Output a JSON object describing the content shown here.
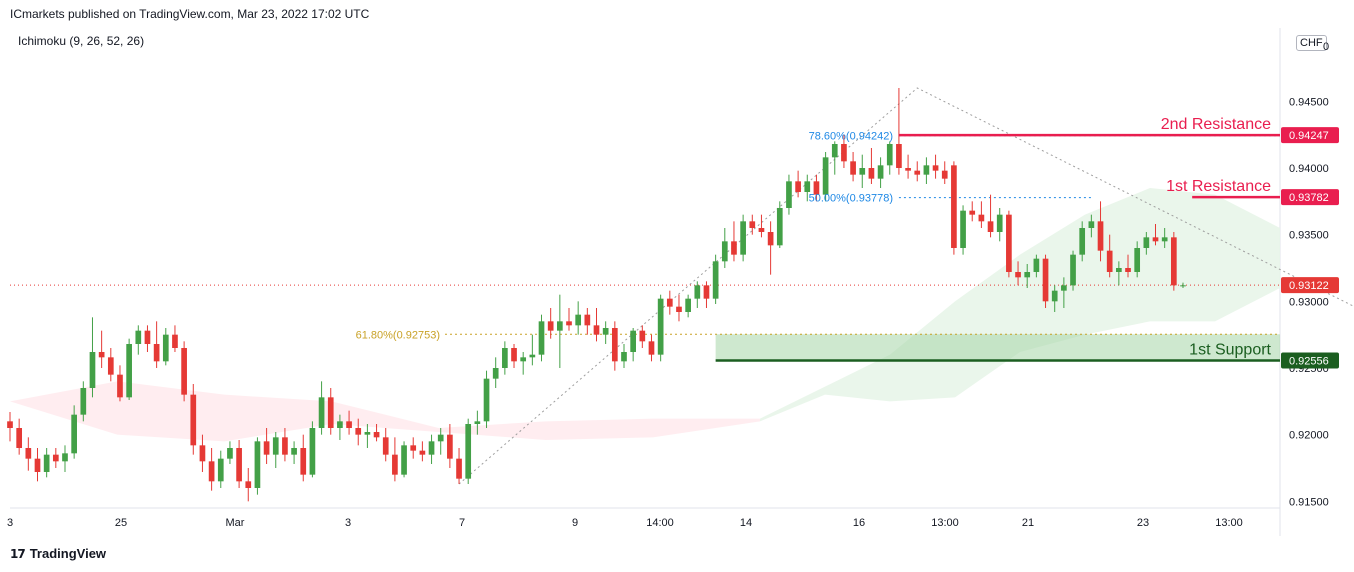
{
  "header": {
    "publisher_line": "ICmarkets published on TradingView.com, Mar 23, 2022 17:02 UTC",
    "indicator": "Ichimoku (9, 26, 52, 26)",
    "currency": "CHF"
  },
  "footer": {
    "logo_glyph": "17",
    "brand": "TradingView"
  },
  "colors": {
    "bull": "#43a047",
    "bear": "#e53935",
    "resistance": "#e91e4f",
    "support": "#1b5e20",
    "support_zone": "#a5d6a7",
    "fib": "#1e88e5",
    "fib_618": "#c9a227",
    "current": "#e53935",
    "cloud_green": "#e8f5e9",
    "cloud_red": "#ffebee"
  },
  "chart_data": {
    "type": "candlestick",
    "ylim": [
      0.9145,
      0.9505
    ],
    "y_ticks": [
      "0.91500",
      "0.92000",
      "0.92500",
      "0.93000",
      "0.93500",
      "0.94000",
      "0.94500",
      "0"
    ],
    "x_ticks": [
      "3",
      "25",
      "Mar",
      "3",
      "7",
      "9",
      "14:00",
      "14",
      "16",
      "13:00",
      "21",
      "23",
      "13:00"
    ],
    "levels": [
      {
        "name": "2nd Resistance",
        "value": 0.94247,
        "label": "0.94247",
        "kind": "resistance"
      },
      {
        "name": "1st Resistance",
        "value": 0.93782,
        "label": "0.93782",
        "kind": "resistance"
      },
      {
        "name": "1st Support",
        "value": 0.92556,
        "label": "0.92556",
        "kind": "support"
      }
    ],
    "current_price": {
      "value": 0.93122,
      "label": "0.93122"
    },
    "fib_labels": [
      {
        "text": "78.60%(0.94242)",
        "value": 0.94242,
        "kind": "fib"
      },
      {
        "text": "50.00%(0.93778)",
        "value": 0.93778,
        "kind": "fib"
      },
      {
        "text": "61.80%(0.92753)",
        "value": 0.92753,
        "kind": "fib_618"
      }
    ],
    "candles": [
      {
        "o": 0.921,
        "h": 0.9217,
        "l": 0.9195,
        "c": 0.9205
      },
      {
        "o": 0.9205,
        "h": 0.9212,
        "l": 0.9185,
        "c": 0.919
      },
      {
        "o": 0.919,
        "h": 0.9198,
        "l": 0.9173,
        "c": 0.9182
      },
      {
        "o": 0.9182,
        "h": 0.919,
        "l": 0.9165,
        "c": 0.9172
      },
      {
        "o": 0.9172,
        "h": 0.919,
        "l": 0.9168,
        "c": 0.9185
      },
      {
        "o": 0.9185,
        "h": 0.919,
        "l": 0.9175,
        "c": 0.918
      },
      {
        "o": 0.918,
        "h": 0.9192,
        "l": 0.9172,
        "c": 0.9186
      },
      {
        "o": 0.9186,
        "h": 0.9222,
        "l": 0.9182,
        "c": 0.9215
      },
      {
        "o": 0.9215,
        "h": 0.924,
        "l": 0.921,
        "c": 0.9235
      },
      {
        "o": 0.9235,
        "h": 0.9288,
        "l": 0.9228,
        "c": 0.9262
      },
      {
        "o": 0.9262,
        "h": 0.9278,
        "l": 0.925,
        "c": 0.9258
      },
      {
        "o": 0.9258,
        "h": 0.9265,
        "l": 0.924,
        "c": 0.9245
      },
      {
        "o": 0.9245,
        "h": 0.9252,
        "l": 0.9225,
        "c": 0.9228
      },
      {
        "o": 0.9228,
        "h": 0.9272,
        "l": 0.9226,
        "c": 0.9268
      },
      {
        "o": 0.9268,
        "h": 0.9282,
        "l": 0.926,
        "c": 0.9278
      },
      {
        "o": 0.9278,
        "h": 0.9282,
        "l": 0.9262,
        "c": 0.9268
      },
      {
        "o": 0.9268,
        "h": 0.9285,
        "l": 0.925,
        "c": 0.9255
      },
      {
        "o": 0.9255,
        "h": 0.928,
        "l": 0.9252,
        "c": 0.9275
      },
      {
        "o": 0.9275,
        "h": 0.9282,
        "l": 0.9262,
        "c": 0.9265
      },
      {
        "o": 0.9265,
        "h": 0.927,
        "l": 0.9225,
        "c": 0.923
      },
      {
        "o": 0.923,
        "h": 0.9238,
        "l": 0.9185,
        "c": 0.9192
      },
      {
        "o": 0.9192,
        "h": 0.92,
        "l": 0.9172,
        "c": 0.918
      },
      {
        "o": 0.918,
        "h": 0.919,
        "l": 0.9158,
        "c": 0.9165
      },
      {
        "o": 0.9165,
        "h": 0.9188,
        "l": 0.916,
        "c": 0.9182
      },
      {
        "o": 0.9182,
        "h": 0.9195,
        "l": 0.9178,
        "c": 0.919
      },
      {
        "o": 0.919,
        "h": 0.9196,
        "l": 0.916,
        "c": 0.9165
      },
      {
        "o": 0.9165,
        "h": 0.9175,
        "l": 0.915,
        "c": 0.916
      },
      {
        "o": 0.916,
        "h": 0.9198,
        "l": 0.9155,
        "c": 0.9195
      },
      {
        "o": 0.9195,
        "h": 0.9205,
        "l": 0.9178,
        "c": 0.9185
      },
      {
        "o": 0.9185,
        "h": 0.9202,
        "l": 0.9175,
        "c": 0.9198
      },
      {
        "o": 0.9198,
        "h": 0.9205,
        "l": 0.918,
        "c": 0.9185
      },
      {
        "o": 0.9185,
        "h": 0.9195,
        "l": 0.9178,
        "c": 0.919
      },
      {
        "o": 0.919,
        "h": 0.92,
        "l": 0.9165,
        "c": 0.917
      },
      {
        "o": 0.917,
        "h": 0.921,
        "l": 0.9168,
        "c": 0.9205
      },
      {
        "o": 0.9205,
        "h": 0.924,
        "l": 0.92,
        "c": 0.9228
      },
      {
        "o": 0.9228,
        "h": 0.9235,
        "l": 0.92,
        "c": 0.9205
      },
      {
        "o": 0.9205,
        "h": 0.9215,
        "l": 0.9196,
        "c": 0.921
      },
      {
        "o": 0.921,
        "h": 0.9218,
        "l": 0.92,
        "c": 0.9205
      },
      {
        "o": 0.9205,
        "h": 0.9212,
        "l": 0.9192,
        "c": 0.92
      },
      {
        "o": 0.92,
        "h": 0.9208,
        "l": 0.919,
        "c": 0.9202
      },
      {
        "o": 0.9202,
        "h": 0.9208,
        "l": 0.9195,
        "c": 0.9198
      },
      {
        "o": 0.9198,
        "h": 0.9205,
        "l": 0.918,
        "c": 0.9185
      },
      {
        "o": 0.9185,
        "h": 0.9198,
        "l": 0.9165,
        "c": 0.917
      },
      {
        "o": 0.917,
        "h": 0.9195,
        "l": 0.9168,
        "c": 0.9192
      },
      {
        "o": 0.9192,
        "h": 0.9198,
        "l": 0.9182,
        "c": 0.9188
      },
      {
        "o": 0.9188,
        "h": 0.9195,
        "l": 0.918,
        "c": 0.9185
      },
      {
        "o": 0.9185,
        "h": 0.92,
        "l": 0.9178,
        "c": 0.9195
      },
      {
        "o": 0.9195,
        "h": 0.9205,
        "l": 0.9185,
        "c": 0.92
      },
      {
        "o": 0.92,
        "h": 0.9208,
        "l": 0.9175,
        "c": 0.9182
      },
      {
        "o": 0.9182,
        "h": 0.919,
        "l": 0.9163,
        "c": 0.9167
      },
      {
        "o": 0.9167,
        "h": 0.9212,
        "l": 0.9163,
        "c": 0.9208
      },
      {
        "o": 0.9208,
        "h": 0.9218,
        "l": 0.92,
        "c": 0.921
      },
      {
        "o": 0.921,
        "h": 0.9248,
        "l": 0.9205,
        "c": 0.9242
      },
      {
        "o": 0.9242,
        "h": 0.9258,
        "l": 0.9235,
        "c": 0.925
      },
      {
        "o": 0.925,
        "h": 0.927,
        "l": 0.9245,
        "c": 0.9265
      },
      {
        "o": 0.9265,
        "h": 0.9268,
        "l": 0.925,
        "c": 0.9255
      },
      {
        "o": 0.9255,
        "h": 0.9262,
        "l": 0.9245,
        "c": 0.9258
      },
      {
        "o": 0.9258,
        "h": 0.9275,
        "l": 0.9252,
        "c": 0.926
      },
      {
        "o": 0.926,
        "h": 0.929,
        "l": 0.9255,
        "c": 0.9285
      },
      {
        "o": 0.9285,
        "h": 0.9295,
        "l": 0.9272,
        "c": 0.9278
      },
      {
        "o": 0.9278,
        "h": 0.9305,
        "l": 0.925,
        "c": 0.9285
      },
      {
        "o": 0.9285,
        "h": 0.9295,
        "l": 0.9278,
        "c": 0.9282
      },
      {
        "o": 0.9282,
        "h": 0.93,
        "l": 0.9275,
        "c": 0.929
      },
      {
        "o": 0.929,
        "h": 0.9295,
        "l": 0.9275,
        "c": 0.9282
      },
      {
        "o": 0.9282,
        "h": 0.9295,
        "l": 0.927,
        "c": 0.9275
      },
      {
        "o": 0.9275,
        "h": 0.9285,
        "l": 0.9268,
        "c": 0.928
      },
      {
        "o": 0.928,
        "h": 0.9285,
        "l": 0.9248,
        "c": 0.9255
      },
      {
        "o": 0.9255,
        "h": 0.9268,
        "l": 0.925,
        "c": 0.9262
      },
      {
        "o": 0.9262,
        "h": 0.928,
        "l": 0.9255,
        "c": 0.9278
      },
      {
        "o": 0.9278,
        "h": 0.9282,
        "l": 0.9265,
        "c": 0.927
      },
      {
        "o": 0.927,
        "h": 0.9275,
        "l": 0.9255,
        "c": 0.926
      },
      {
        "o": 0.926,
        "h": 0.9305,
        "l": 0.9255,
        "c": 0.9302
      },
      {
        "o": 0.9302,
        "h": 0.9308,
        "l": 0.929,
        "c": 0.9296
      },
      {
        "o": 0.9296,
        "h": 0.9305,
        "l": 0.9285,
        "c": 0.9292
      },
      {
        "o": 0.9292,
        "h": 0.9305,
        "l": 0.9288,
        "c": 0.9302
      },
      {
        "o": 0.9302,
        "h": 0.9315,
        "l": 0.9295,
        "c": 0.9312
      },
      {
        "o": 0.9312,
        "h": 0.9315,
        "l": 0.9295,
        "c": 0.9302
      },
      {
        "o": 0.9302,
        "h": 0.9335,
        "l": 0.9298,
        "c": 0.933
      },
      {
        "o": 0.933,
        "h": 0.9355,
        "l": 0.9325,
        "c": 0.9345
      },
      {
        "o": 0.9345,
        "h": 0.936,
        "l": 0.933,
        "c": 0.9335
      },
      {
        "o": 0.9335,
        "h": 0.9365,
        "l": 0.933,
        "c": 0.936
      },
      {
        "o": 0.936,
        "h": 0.9365,
        "l": 0.935,
        "c": 0.9355
      },
      {
        "o": 0.9355,
        "h": 0.9365,
        "l": 0.9348,
        "c": 0.9352
      },
      {
        "o": 0.9352,
        "h": 0.936,
        "l": 0.932,
        "c": 0.9342
      },
      {
        "o": 0.9342,
        "h": 0.9375,
        "l": 0.934,
        "c": 0.937
      },
      {
        "o": 0.937,
        "h": 0.9395,
        "l": 0.9365,
        "c": 0.939
      },
      {
        "o": 0.939,
        "h": 0.9398,
        "l": 0.9378,
        "c": 0.9382
      },
      {
        "o": 0.9382,
        "h": 0.9395,
        "l": 0.9375,
        "c": 0.939
      },
      {
        "o": 0.939,
        "h": 0.9395,
        "l": 0.9375,
        "c": 0.938
      },
      {
        "o": 0.938,
        "h": 0.9412,
        "l": 0.9375,
        "c": 0.9408
      },
      {
        "o": 0.9408,
        "h": 0.942,
        "l": 0.9395,
        "c": 0.9418
      },
      {
        "o": 0.9418,
        "h": 0.9425,
        "l": 0.94,
        "c": 0.9405
      },
      {
        "o": 0.9405,
        "h": 0.9412,
        "l": 0.939,
        "c": 0.9395
      },
      {
        "o": 0.9395,
        "h": 0.941,
        "l": 0.9385,
        "c": 0.94
      },
      {
        "o": 0.94,
        "h": 0.9415,
        "l": 0.9388,
        "c": 0.9392
      },
      {
        "o": 0.9392,
        "h": 0.9408,
        "l": 0.9385,
        "c": 0.9402
      },
      {
        "o": 0.9402,
        "h": 0.942,
        "l": 0.9395,
        "c": 0.9418
      },
      {
        "o": 0.9418,
        "h": 0.946,
        "l": 0.9395,
        "c": 0.94
      },
      {
        "o": 0.94,
        "h": 0.941,
        "l": 0.9392,
        "c": 0.9398
      },
      {
        "o": 0.9398,
        "h": 0.9405,
        "l": 0.939,
        "c": 0.9395
      },
      {
        "o": 0.9395,
        "h": 0.9408,
        "l": 0.9388,
        "c": 0.9402
      },
      {
        "o": 0.9402,
        "h": 0.941,
        "l": 0.9392,
        "c": 0.9398
      },
      {
        "o": 0.9398,
        "h": 0.9405,
        "l": 0.9388,
        "c": 0.9392
      },
      {
        "o": 0.9402,
        "h": 0.9405,
        "l": 0.9335,
        "c": 0.934
      },
      {
        "o": 0.934,
        "h": 0.9372,
        "l": 0.9335,
        "c": 0.9368
      },
      {
        "o": 0.9368,
        "h": 0.9375,
        "l": 0.936,
        "c": 0.9365
      },
      {
        "o": 0.9365,
        "h": 0.9375,
        "l": 0.9355,
        "c": 0.936
      },
      {
        "o": 0.936,
        "h": 0.938,
        "l": 0.9348,
        "c": 0.9352
      },
      {
        "o": 0.9352,
        "h": 0.937,
        "l": 0.9345,
        "c": 0.9365
      },
      {
        "o": 0.9365,
        "h": 0.9368,
        "l": 0.9318,
        "c": 0.9322
      },
      {
        "o": 0.9322,
        "h": 0.933,
        "l": 0.9312,
        "c": 0.9318
      },
      {
        "o": 0.9318,
        "h": 0.9328,
        "l": 0.931,
        "c": 0.9322
      },
      {
        "o": 0.9322,
        "h": 0.9335,
        "l": 0.9318,
        "c": 0.9332
      },
      {
        "o": 0.9332,
        "h": 0.9335,
        "l": 0.9295,
        "c": 0.93
      },
      {
        "o": 0.93,
        "h": 0.9312,
        "l": 0.9292,
        "c": 0.9308
      },
      {
        "o": 0.9308,
        "h": 0.9318,
        "l": 0.9295,
        "c": 0.9312
      },
      {
        "o": 0.9312,
        "h": 0.9338,
        "l": 0.9308,
        "c": 0.9335
      },
      {
        "o": 0.9335,
        "h": 0.936,
        "l": 0.933,
        "c": 0.9355
      },
      {
        "o": 0.9355,
        "h": 0.9365,
        "l": 0.9348,
        "c": 0.936
      },
      {
        "o": 0.936,
        "h": 0.9375,
        "l": 0.933,
        "c": 0.9338
      },
      {
        "o": 0.9338,
        "h": 0.935,
        "l": 0.9318,
        "c": 0.9322
      },
      {
        "o": 0.9322,
        "h": 0.933,
        "l": 0.9312,
        "c": 0.9325
      },
      {
        "o": 0.9325,
        "h": 0.9335,
        "l": 0.9318,
        "c": 0.9322
      },
      {
        "o": 0.9322,
        "h": 0.9345,
        "l": 0.9318,
        "c": 0.934
      },
      {
        "o": 0.934,
        "h": 0.9352,
        "l": 0.9335,
        "c": 0.9348
      },
      {
        "o": 0.9348,
        "h": 0.9358,
        "l": 0.9342,
        "c": 0.9345
      },
      {
        "o": 0.9345,
        "h": 0.9355,
        "l": 0.934,
        "c": 0.9348
      },
      {
        "o": 0.9348,
        "h": 0.9352,
        "l": 0.9308,
        "c": 0.9312
      },
      {
        "o": 0.9312,
        "h": 0.9314,
        "l": 0.931,
        "c": 0.9312
      }
    ],
    "cloud_green": [
      [
        0.921,
        0.9212
      ],
      [
        0.923,
        0.9236
      ],
      [
        0.9225,
        0.926
      ],
      [
        0.9228,
        0.93
      ],
      [
        0.9262,
        0.9335
      ],
      [
        0.9275,
        0.9365
      ],
      [
        0.9285,
        0.9385
      ],
      [
        0.9285,
        0.938
      ],
      [
        0.931,
        0.9355
      ]
    ],
    "cloud_red": [
      [
        0.9225,
        0.9225
      ],
      [
        0.92,
        0.924
      ],
      [
        0.9195,
        0.923
      ],
      [
        0.9208,
        0.9225
      ],
      [
        0.9202,
        0.9205
      ],
      [
        0.9196,
        0.921
      ],
      [
        0.9198,
        0.9212
      ],
      [
        0.921,
        0.9212
      ]
    ]
  }
}
